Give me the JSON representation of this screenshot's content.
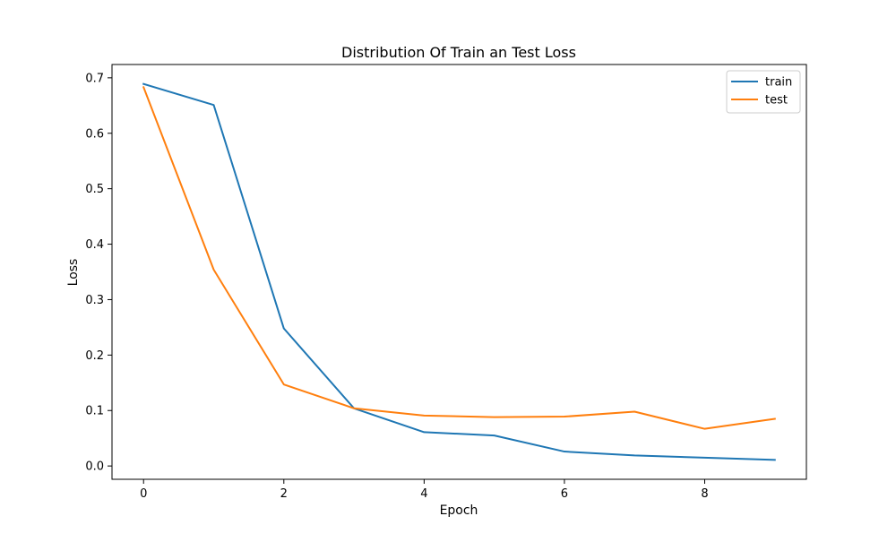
{
  "chart_data": {
    "type": "line",
    "title": "Distribution Of Train an Test Loss",
    "xlabel": "Epoch",
    "ylabel": "Loss",
    "xlim": [
      -0.45,
      9.45
    ],
    "ylim": [
      -0.024,
      0.724
    ],
    "xticks": [
      0,
      2,
      4,
      6,
      8
    ],
    "xtick_labels": [
      "0",
      "2",
      "4",
      "6",
      "8"
    ],
    "yticks": [
      0.0,
      0.1,
      0.2,
      0.3,
      0.4,
      0.5,
      0.6,
      0.7
    ],
    "ytick_labels": [
      "0.0",
      "0.1",
      "0.2",
      "0.3",
      "0.4",
      "0.5",
      "0.6",
      "0.7"
    ],
    "grid": false,
    "legend_position": "top-right",
    "x": [
      0,
      1,
      2,
      3,
      4,
      5,
      6,
      7,
      8,
      9
    ],
    "series": [
      {
        "name": "train",
        "color": "#1f77b4",
        "values": [
          0.689,
          0.651,
          0.248,
          0.104,
          0.061,
          0.055,
          0.026,
          0.019,
          0.015,
          0.011
        ]
      },
      {
        "name": "test",
        "color": "#ff7f0e",
        "values": [
          0.683,
          0.354,
          0.147,
          0.104,
          0.091,
          0.088,
          0.089,
          0.098,
          0.067,
          0.085
        ]
      }
    ]
  }
}
